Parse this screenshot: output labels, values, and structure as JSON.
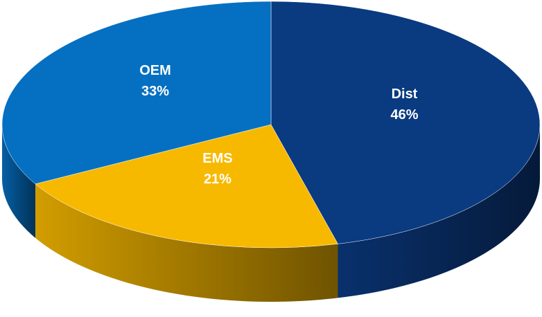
{
  "chart_data": {
    "type": "pie",
    "categories": [
      "Dist",
      "EMS",
      "OEM"
    ],
    "values": [
      46,
      21,
      33
    ],
    "value_labels": [
      "46%",
      "21%",
      "33%"
    ],
    "colors": [
      "#0a3a80",
      "#f7b900",
      "#0570c2"
    ]
  }
}
